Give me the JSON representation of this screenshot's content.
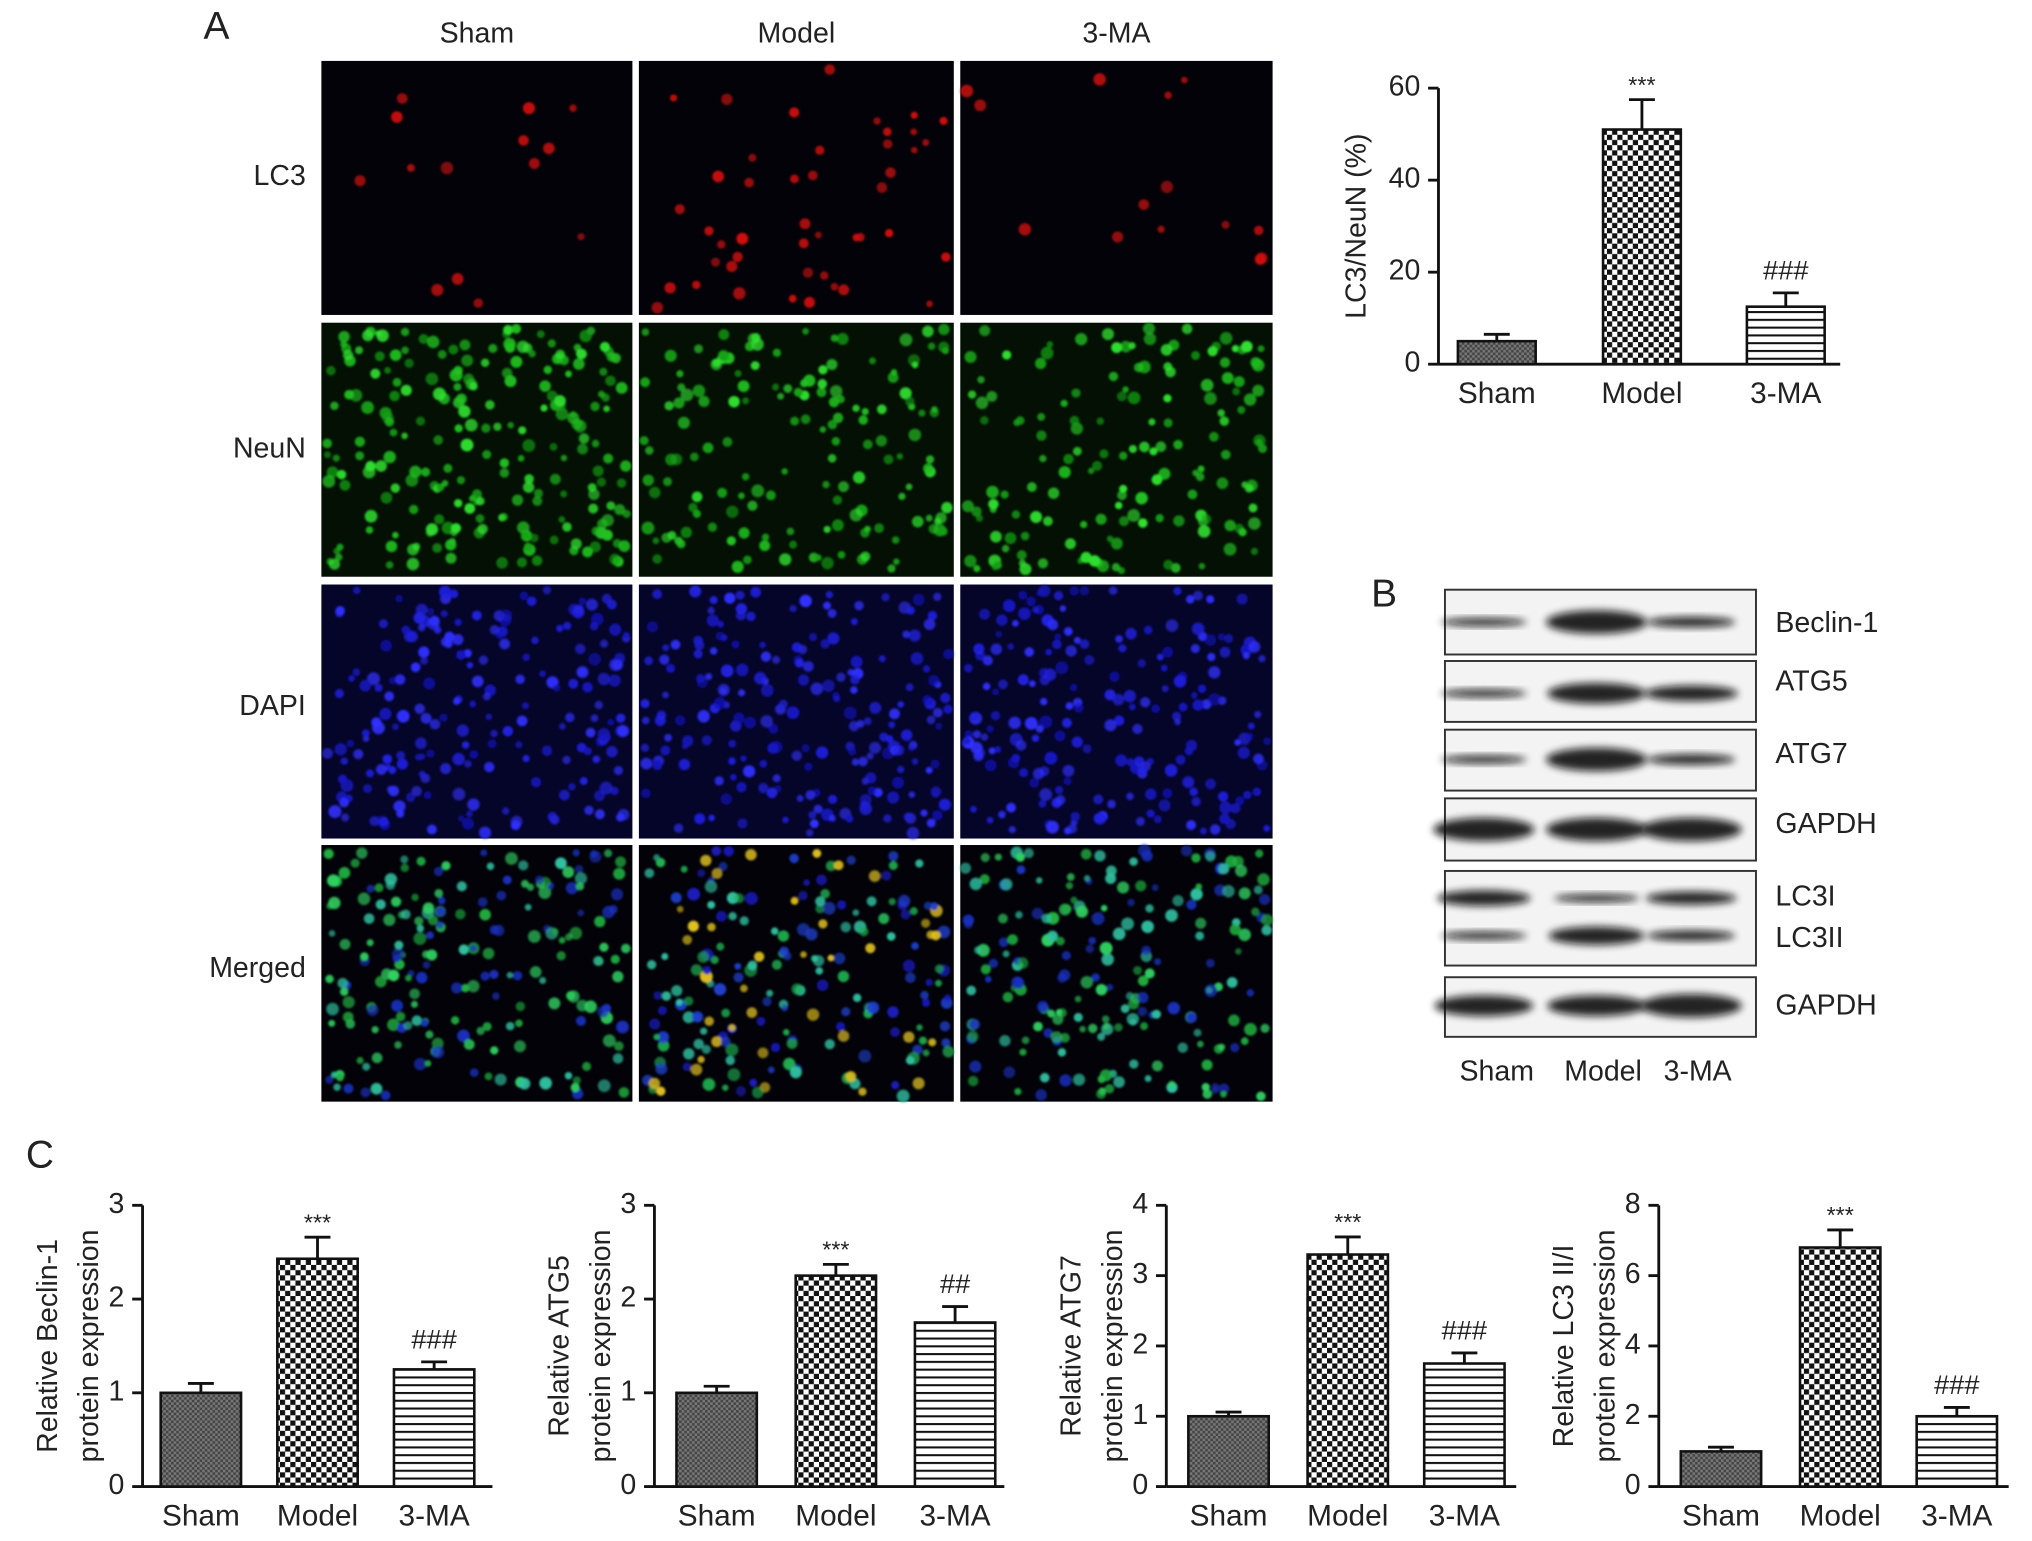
{
  "panel_labels": [
    "A",
    "B",
    "C"
  ],
  "micrographs": {
    "columns": [
      "Sham",
      "Model",
      "3-MA"
    ],
    "rows": [
      "LC3",
      "NeuN",
      "DAPI",
      "Merged"
    ]
  },
  "western_blot": {
    "lanes": [
      "Sham",
      "Model",
      "3-MA"
    ],
    "bands": [
      "Beclin-1",
      "ATG5",
      "ATG7",
      "GAPDH",
      "LC3I",
      "LC3II",
      "GAPDH"
    ]
  },
  "chart_data": [
    {
      "type": "bar",
      "ylabel": [
        "LC3/NeuN (%)"
      ],
      "categories": [
        "Sham",
        "Model",
        "3-MA"
      ],
      "values": [
        5,
        51,
        12.5
      ],
      "errors": [
        1.5,
        6.5,
        3
      ],
      "annotations": [
        null,
        "***",
        "###"
      ],
      "patterns": [
        "dots",
        "checker",
        "hlines"
      ],
      "ylim": [
        0,
        60
      ],
      "yticks": [
        0,
        20,
        40,
        60
      ]
    },
    {
      "type": "bar",
      "ylabel": [
        "Relative Beclin-1",
        "protein expression"
      ],
      "categories": [
        "Sham",
        "Model",
        "3-MA"
      ],
      "values": [
        1.0,
        2.43,
        1.25
      ],
      "errors": [
        0.1,
        0.23,
        0.08
      ],
      "annotations": [
        null,
        "***",
        "###"
      ],
      "patterns": [
        "dots",
        "checker",
        "hlines"
      ],
      "ylim": [
        0,
        3
      ],
      "yticks": [
        0,
        1,
        2,
        3
      ]
    },
    {
      "type": "bar",
      "ylabel": [
        "Relative ATG5",
        "protein expression"
      ],
      "categories": [
        "Sham",
        "Model",
        "3-MA"
      ],
      "values": [
        1.0,
        2.25,
        1.75
      ],
      "errors": [
        0.07,
        0.12,
        0.17
      ],
      "annotations": [
        null,
        "***",
        "##"
      ],
      "patterns": [
        "dots",
        "checker",
        "hlines"
      ],
      "ylim": [
        0,
        3
      ],
      "yticks": [
        0,
        1,
        2,
        3
      ]
    },
    {
      "type": "bar",
      "ylabel": [
        "Relative ATG7",
        "protein expression"
      ],
      "categories": [
        "Sham",
        "Model",
        "3-MA"
      ],
      "values": [
        1.0,
        3.3,
        1.75
      ],
      "errors": [
        0.06,
        0.25,
        0.15
      ],
      "annotations": [
        null,
        "***",
        "###"
      ],
      "patterns": [
        "dots",
        "checker",
        "hlines"
      ],
      "ylim": [
        0,
        4
      ],
      "yticks": [
        0,
        1,
        2,
        3,
        4
      ]
    },
    {
      "type": "bar",
      "ylabel": [
        "Relative LC3 II/I",
        "protein expression"
      ],
      "categories": [
        "Sham",
        "Model",
        "3-MA"
      ],
      "values": [
        1.0,
        6.8,
        2.0
      ],
      "errors": [
        0.12,
        0.5,
        0.25
      ],
      "annotations": [
        null,
        "***",
        "###"
      ],
      "patterns": [
        "dots",
        "checker",
        "hlines"
      ],
      "ylim": [
        0,
        8
      ],
      "yticks": [
        0,
        2,
        4,
        6,
        8
      ]
    }
  ]
}
